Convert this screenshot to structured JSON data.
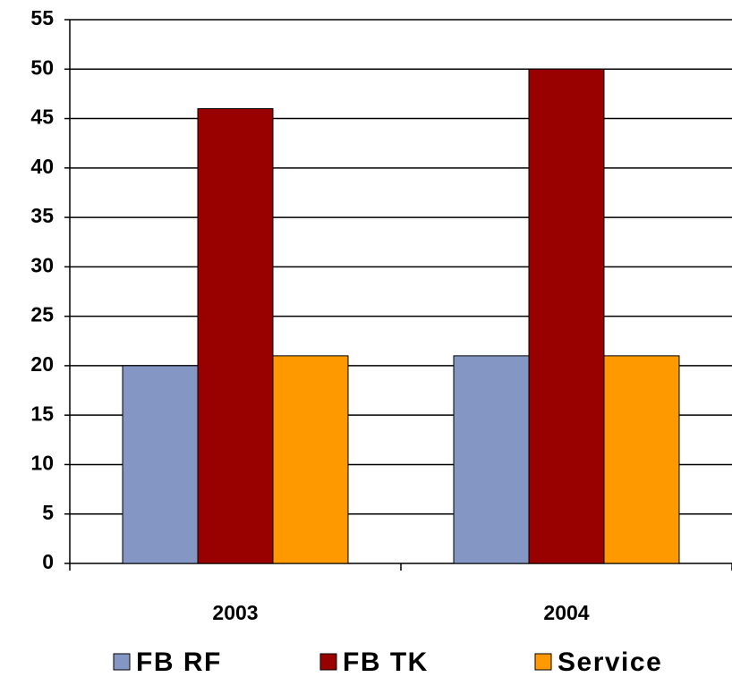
{
  "chart_data": {
    "type": "bar",
    "categories": [
      "2003",
      "2004"
    ],
    "series": [
      {
        "name": "FB RF",
        "color": "#8497c4",
        "values": [
          20,
          21
        ]
      },
      {
        "name": "FB TK",
        "color": "#990000",
        "values": [
          46,
          50
        ]
      },
      {
        "name": "Service",
        "color": "#ff9900",
        "values": [
          21,
          21
        ]
      }
    ],
    "ylim": [
      0,
      55
    ],
    "yticks": [
      0,
      5,
      10,
      15,
      20,
      25,
      30,
      35,
      40,
      45,
      50,
      55
    ],
    "grid": true,
    "legend": "bottom"
  }
}
